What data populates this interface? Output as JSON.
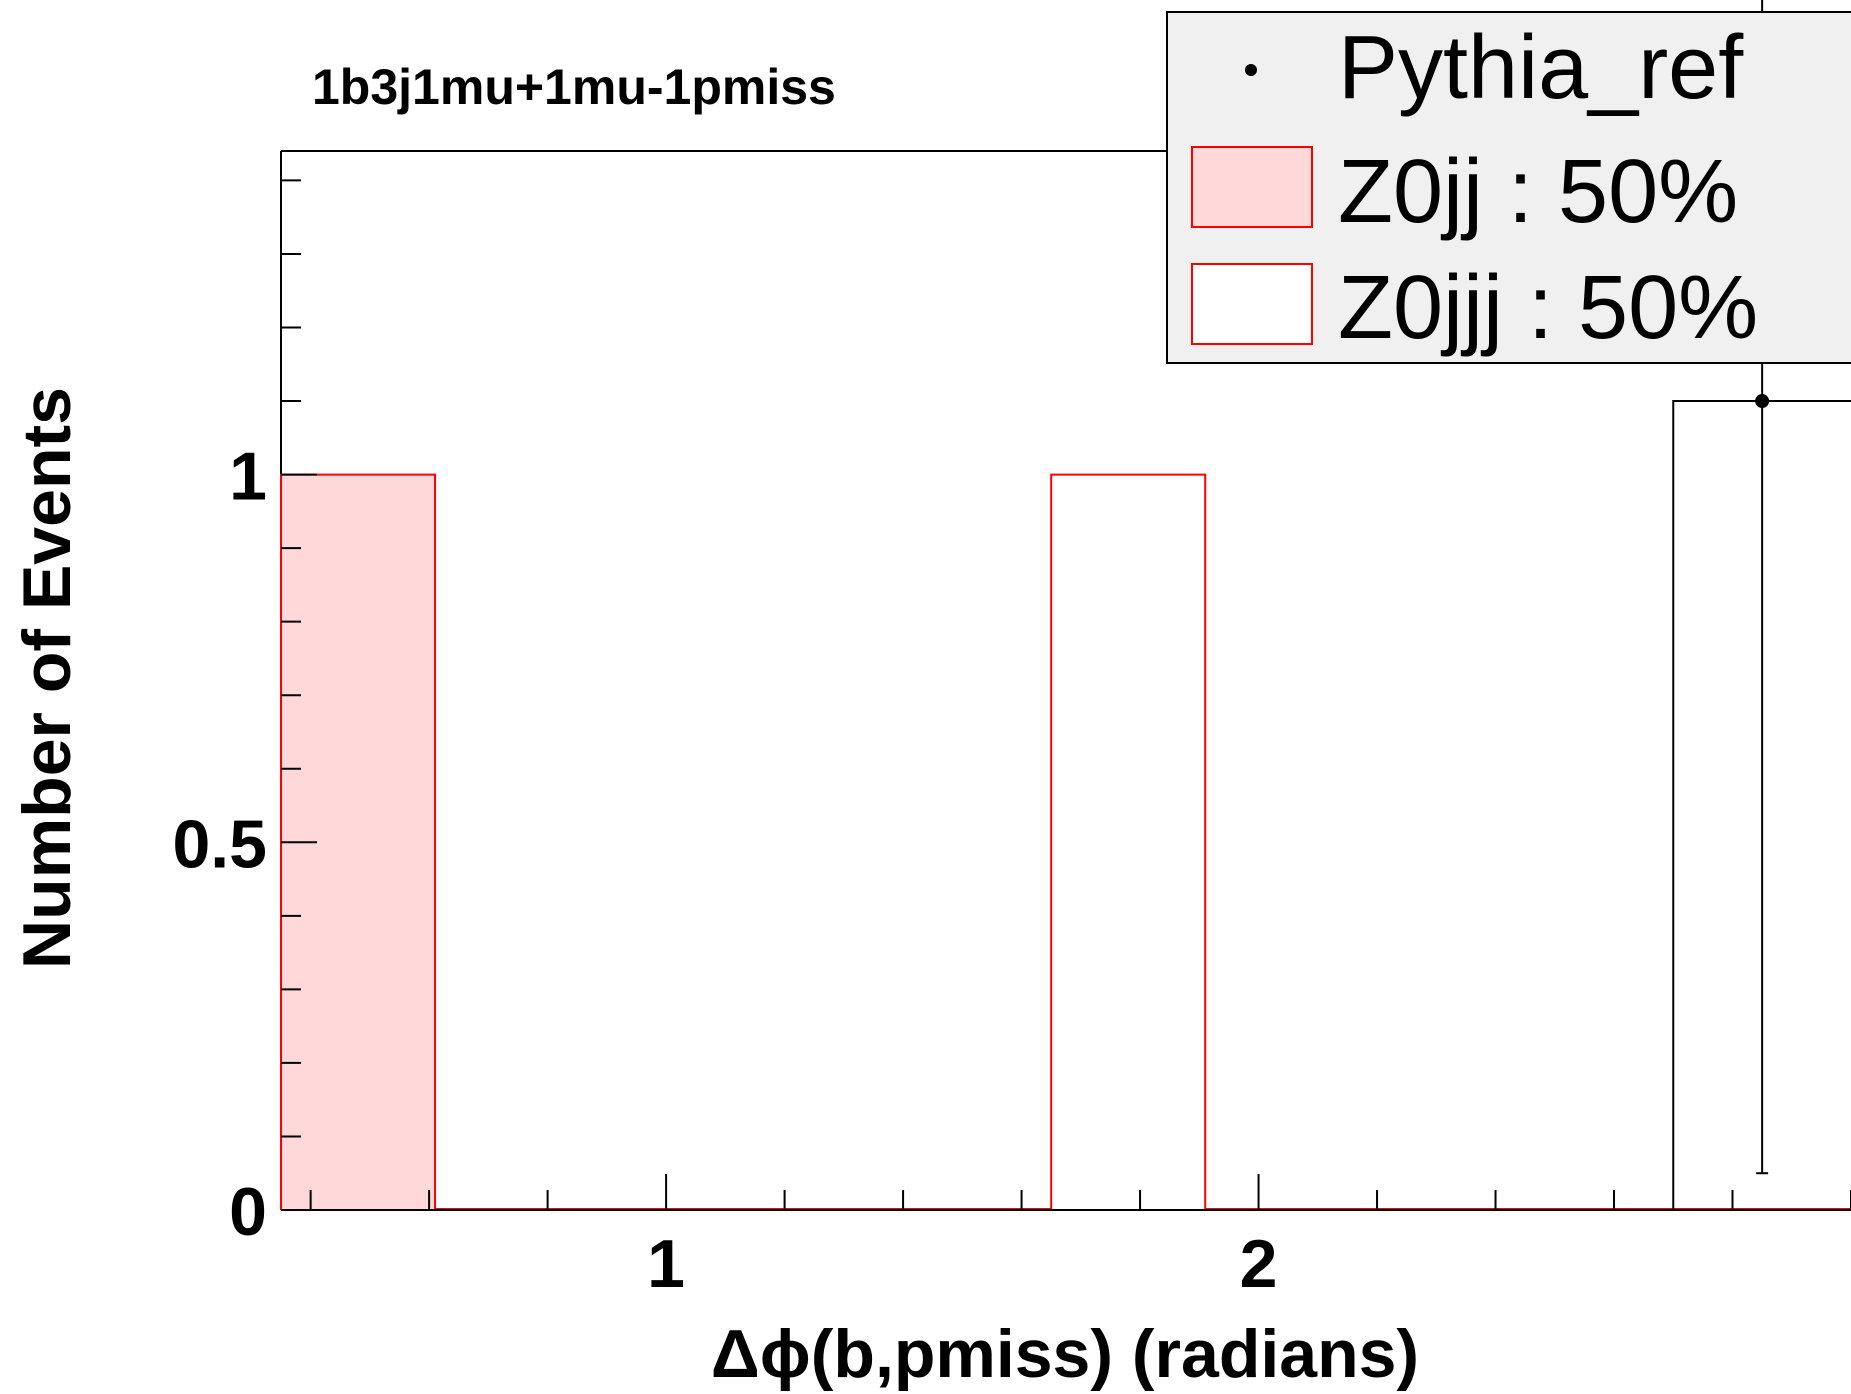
{
  "chart_data": {
    "type": "bar",
    "title": "1b3j1mu+1mu-1pmiss",
    "xlabel": "Δϕ(b,pmiss) (radians)",
    "ylabel": "Number of Events",
    "xlim": [
      0.35,
      3.0
    ],
    "ylim": [
      0,
      1.44
    ],
    "x_ticks": [
      {
        "value": 1,
        "label": "1"
      },
      {
        "value": 2,
        "label": "2"
      }
    ],
    "x_minor_step": 0.2,
    "y_ticks": [
      {
        "value": 0,
        "label": "0"
      },
      {
        "value": 0.5,
        "label": "0.5"
      },
      {
        "value": 1,
        "label": "1"
      }
    ],
    "y_minor_step": 0.1,
    "series": [
      {
        "name": "Z0jj : 50%",
        "style": "filled",
        "fill": "#ffd9d9",
        "line": "#ff0000",
        "bins": [
          {
            "x0": 0.35,
            "x1": 0.61,
            "value": 1
          },
          {
            "x0": 0.61,
            "x1": 2.0,
            "value": 0
          }
        ]
      },
      {
        "name": "Z0jjj : 50%",
        "style": "hollow",
        "fill": "#ffffff",
        "line": "#ff0000",
        "bins": [
          {
            "x0": 1.65,
            "x1": 1.91,
            "value": 1
          },
          {
            "x0": 1.91,
            "x1": 3.0,
            "value": 0
          }
        ]
      },
      {
        "name": "Pythia_ref",
        "style": "hist-points",
        "line": "#000000",
        "bins": [
          {
            "x0": 2.7,
            "x1": 3.0,
            "value": 1.1,
            "err_low": 1.05,
            "err_high": 1.1
          }
        ]
      }
    ],
    "legend": {
      "position": "top-right",
      "entries": [
        {
          "label": "Pythia_ref",
          "marker": "point"
        },
        {
          "label": "Z0jj : 50%",
          "marker": "filled-box"
        },
        {
          "label": "Z0jjj : 50%",
          "marker": "hollow-box"
        }
      ]
    },
    "grid": false
  }
}
